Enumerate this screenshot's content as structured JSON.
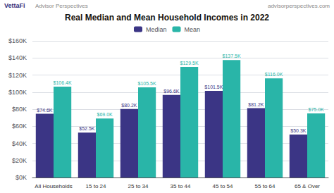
{
  "chart_data": {
    "type": "bar",
    "title": "Real Median and Mean Household Incomes in 2022",
    "categories": [
      "All Households",
      "15 to 24",
      "25 to 34",
      "35 to 44",
      "45 to 54",
      "55 to 64",
      "65 & Over"
    ],
    "series": [
      {
        "name": "Median",
        "color": "#3b3585",
        "values": [
          74600,
          52500,
          80200,
          96600,
          101500,
          81200,
          50300
        ],
        "value_labels": [
          "$74.6K",
          "$52.5K",
          "$80.2K",
          "$96.6K",
          "$101.5K",
          "$81.2K",
          "$50.3K"
        ]
      },
      {
        "name": "Mean",
        "color": "#29b5a8",
        "values": [
          106400,
          69000,
          105500,
          129500,
          137500,
          116000,
          75000
        ],
        "value_labels": [
          "$106.4K",
          "$69.0K",
          "$105.5K",
          "$129.5K",
          "$137.5K",
          "$116.0K",
          "$75.0K"
        ]
      }
    ],
    "ylim": [
      0,
      160000
    ],
    "yticks": [
      {
        "value": 0,
        "label": "$0K"
      },
      {
        "value": 20000,
        "label": "$20K"
      },
      {
        "value": 40000,
        "label": "$40K"
      },
      {
        "value": 60000,
        "label": "$60K"
      },
      {
        "value": 80000,
        "label": "$80K"
      },
      {
        "value": 100000,
        "label": "$100K"
      },
      {
        "value": 120000,
        "label": "$120K"
      },
      {
        "value": 140000,
        "label": "$140K"
      },
      {
        "value": 160000,
        "label": "$160K"
      }
    ],
    "grid": true,
    "legend": "top",
    "data_labels": true,
    "annotations": [
      "VettaFi",
      "Advisor Perspectives",
      "advisorperspectives.com"
    ]
  }
}
